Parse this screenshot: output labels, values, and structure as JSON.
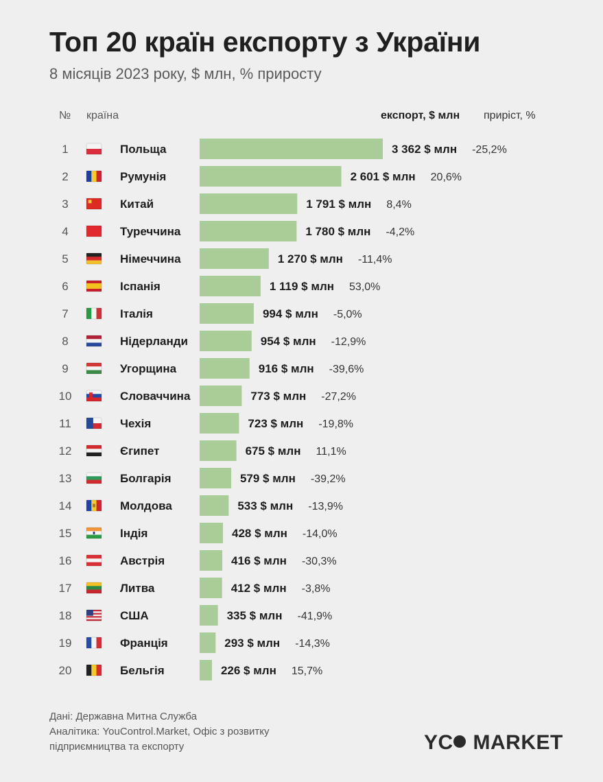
{
  "title": "Топ 20 країн експорту з України",
  "subtitle": "8 місяців 2023 року, $ млн, % приросту",
  "headers": {
    "num": "№",
    "country": "країна",
    "export": "експорт, $ млн",
    "growth": "приріст, %"
  },
  "colors": {
    "bar": "#a9cd96",
    "background": "#efefef"
  },
  "chart_data": {
    "type": "bar",
    "orientation": "horizontal",
    "unit_suffix": " $ млн",
    "categories": [
      "Польща",
      "Румунія",
      "Китай",
      "Туреччина",
      "Німеччина",
      "Іспанія",
      "Італія",
      "Нідерланди",
      "Угорщина",
      "Словаччина",
      "Чехія",
      "Єгипет",
      "Болгарія",
      "Молдова",
      "Індія",
      "Австрія",
      "Литва",
      "США",
      "Франція",
      "Бельгія"
    ],
    "ranks": [
      "1",
      "2",
      "3",
      "4",
      "5",
      "6",
      "7",
      "8",
      "9",
      "10",
      "11",
      "12",
      "13",
      "14",
      "15",
      "16",
      "17",
      "18",
      "19",
      "20"
    ],
    "values": [
      3362,
      2601,
      1791,
      1780,
      1270,
      1119,
      994,
      954,
      916,
      773,
      723,
      675,
      579,
      533,
      428,
      416,
      412,
      335,
      293,
      226
    ],
    "value_labels": [
      "3 362 $ млн",
      "2 601 $ млн",
      "1 791 $ млн",
      "1 780 $ млн",
      "1 270 $ млн",
      "1 119 $ млн",
      "994 $ млн",
      "954 $ млн",
      "916 $ млн",
      "773 $ млн",
      "723 $ млн",
      "675 $ млн",
      "579 $ млн",
      "533 $ млн",
      "428 $ млн",
      "416 $ млн",
      "412 $ млн",
      "335 $ млн",
      "293 $ млн",
      "226 $ млн"
    ],
    "growth_labels": [
      "-25,2%",
      "20,6%",
      "8,4%",
      "-4,2%",
      "-11,4%",
      "53,0%",
      "-5,0%",
      "-12,9%",
      "-39,6%",
      "-27,2%",
      "-19,8%",
      "11,1%",
      "-39,2%",
      "-13,9%",
      "-14,0%",
      "-30,3%",
      "-3,8%",
      "-41,9%",
      "-14,3%",
      "15,7%"
    ],
    "growth": [
      -25.2,
      20.6,
      8.4,
      -4.2,
      -11.4,
      53.0,
      -5.0,
      -12.9,
      -39.6,
      -27.2,
      -19.8,
      11.1,
      -39.2,
      -13.9,
      -14.0,
      -30.3,
      -3.8,
      -41.9,
      -14.3,
      15.7
    ],
    "flags": [
      "poland-flag-icon",
      "romania-flag-icon",
      "china-flag-icon",
      "turkey-flag-icon",
      "germany-flag-icon",
      "spain-flag-icon",
      "italy-flag-icon",
      "netherlands-flag-icon",
      "hungary-flag-icon",
      "slovakia-flag-icon",
      "czechia-flag-icon",
      "egypt-flag-icon",
      "bulgaria-flag-icon",
      "moldova-flag-icon",
      "india-flag-icon",
      "austria-flag-icon",
      "lithuania-flag-icon",
      "usa-flag-icon",
      "france-flag-icon",
      "belgium-flag-icon"
    ],
    "xlim": [
      0,
      3362
    ],
    "grid": false,
    "legend": "none"
  },
  "footer": {
    "line1": "Дані: Державна Митна Служба",
    "line2": "Аналітика: YouControl.Market, Офіс з розвитку",
    "line3": "підприємництва та експорту"
  },
  "brand": {
    "left": "YC",
    "right": "MARKET"
  }
}
